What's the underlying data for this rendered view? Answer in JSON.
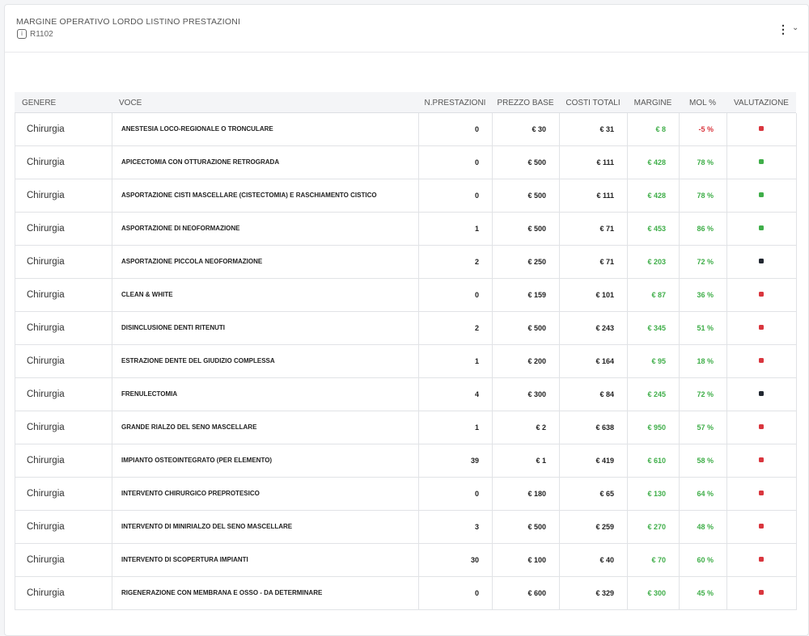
{
  "header": {
    "title": "MARGINE OPERATIVO LORDO LISTINO PRESTAZIONI",
    "code": "R1102"
  },
  "table": {
    "columns": [
      "GENERE",
      "VOCE",
      "N.PRESTAZIONI",
      "PREZZO BASE",
      "COSTI TOTALI",
      "MARGINE",
      "MOL %",
      "VALUTAZIONE"
    ],
    "rows": [
      {
        "genere": "Chirurgia",
        "voce": "ANESTESIA LOCO-REGIONALE O TRONCULARE",
        "n": "0",
        "prezzo": "€ 30",
        "costi": "€ 31",
        "margine": "€ 8",
        "mol": "-5 %",
        "mol_color": "#d9363e",
        "status_color": "#d9363e"
      },
      {
        "genere": "Chirurgia",
        "voce": "APICECTOMIA CON OTTURAZIONE RETROGRADA",
        "n": "0",
        "prezzo": "€ 500",
        "costi": "€ 111",
        "margine": "€ 428",
        "mol": "78 %",
        "mol_color": "#3fae49",
        "status_color": "#3fae49"
      },
      {
        "genere": "Chirurgia",
        "voce": "ASPORTAZIONE CISTI MASCELLARE (CISTECTOMIA) E RASCHIAMENTO CISTICO",
        "n": "0",
        "prezzo": "€ 500",
        "costi": "€ 111",
        "margine": "€ 428",
        "mol": "78 %",
        "mol_color": "#3fae49",
        "status_color": "#3fae49"
      },
      {
        "genere": "Chirurgia",
        "voce": "ASPORTAZIONE DI NEOFORMAZIONE",
        "n": "1",
        "prezzo": "€ 500",
        "costi": "€ 71",
        "margine": "€ 453",
        "mol": "86 %",
        "mol_color": "#3fae49",
        "status_color": "#3fae49"
      },
      {
        "genere": "Chirurgia",
        "voce": "ASPORTAZIONE PICCOLA NEOFORMAZIONE",
        "n": "2",
        "prezzo": "€ 250",
        "costi": "€ 71",
        "margine": "€ 203",
        "mol": "72 %",
        "mol_color": "#3fae49",
        "status_color": "#222831"
      },
      {
        "genere": "Chirurgia",
        "voce": "CLEAN & WHITE",
        "n": "0",
        "prezzo": "€ 159",
        "costi": "€ 101",
        "margine": "€ 87",
        "mol": "36 %",
        "mol_color": "#3fae49",
        "status_color": "#d9363e"
      },
      {
        "genere": "Chirurgia",
        "voce": "DISINCLUSIONE DENTI RITENUTI",
        "n": "2",
        "prezzo": "€ 500",
        "costi": "€ 243",
        "margine": "€ 345",
        "mol": "51 %",
        "mol_color": "#3fae49",
        "status_color": "#d9363e"
      },
      {
        "genere": "Chirurgia",
        "voce": "ESTRAZIONE DENTE DEL GIUDIZIO COMPLESSA",
        "n": "1",
        "prezzo": "€ 200",
        "costi": "€ 164",
        "margine": "€ 95",
        "mol": "18 %",
        "mol_color": "#3fae49",
        "status_color": "#d9363e"
      },
      {
        "genere": "Chirurgia",
        "voce": "FRENULECTOMIA",
        "n": "4",
        "prezzo": "€ 300",
        "costi": "€ 84",
        "margine": "€ 245",
        "mol": "72 %",
        "mol_color": "#3fae49",
        "status_color": "#222831"
      },
      {
        "genere": "Chirurgia",
        "voce": "GRANDE RIALZO DEL SENO MASCELLARE",
        "n": "1",
        "prezzo": "€ 2",
        "costi": "€ 638",
        "margine": "€ 950",
        "mol": "57 %",
        "mol_color": "#3fae49",
        "status_color": "#d9363e"
      },
      {
        "genere": "Chirurgia",
        "voce": "IMPIANTO OSTEOINTEGRATO (PER ELEMENTO)",
        "n": "39",
        "prezzo": "€ 1",
        "costi": "€ 419",
        "margine": "€ 610",
        "mol": "58 %",
        "mol_color": "#3fae49",
        "status_color": "#d9363e"
      },
      {
        "genere": "Chirurgia",
        "voce": "INTERVENTO CHIRURGICO PREPROTESICO",
        "n": "0",
        "prezzo": "€ 180",
        "costi": "€ 65",
        "margine": "€ 130",
        "mol": "64 %",
        "mol_color": "#3fae49",
        "status_color": "#d9363e"
      },
      {
        "genere": "Chirurgia",
        "voce": "INTERVENTO DI MINIRIALZO DEL SENO MASCELLARE",
        "n": "3",
        "prezzo": "€ 500",
        "costi": "€ 259",
        "margine": "€ 270",
        "mol": "48 %",
        "mol_color": "#3fae49",
        "status_color": "#d9363e"
      },
      {
        "genere": "Chirurgia",
        "voce": "INTERVENTO DI SCOPERTURA IMPIANTI",
        "n": "30",
        "prezzo": "€ 100",
        "costi": "€ 40",
        "margine": "€ 70",
        "mol": "60 %",
        "mol_color": "#3fae49",
        "status_color": "#d9363e"
      },
      {
        "genere": "Chirurgia",
        "voce": "RIGENERAZIONE CON MEMBRANA E OSSO - DA DETERMINARE",
        "n": "0",
        "prezzo": "€ 600",
        "costi": "€ 329",
        "margine": "€ 300",
        "mol": "45 %",
        "mol_color": "#3fae49",
        "status_color": "#d9363e"
      }
    ]
  }
}
